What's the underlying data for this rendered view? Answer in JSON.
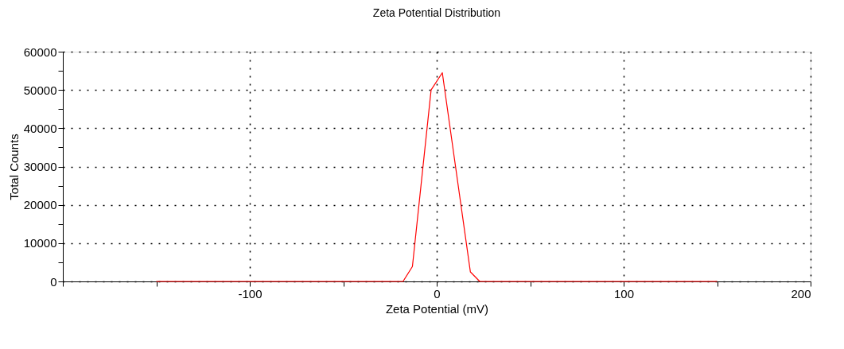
{
  "chart_data": {
    "type": "line",
    "title": "Zeta Potential Distribution",
    "xlabel": "Zeta Potential (mV)",
    "ylabel": "Total Counts",
    "x": [
      -150,
      -18,
      -13,
      -3,
      3,
      18,
      23,
      150
    ],
    "series": [
      {
        "color": "#ff0000",
        "values": [
          0,
          0,
          3900,
          50000,
          54500,
          2500,
          0,
          0
        ]
      }
    ],
    "xlim": [
      -200,
      200
    ],
    "xticks": [
      {
        "value": -200,
        "label": null
      },
      {
        "value": -150,
        "label": null
      },
      -100,
      {
        "value": -50,
        "label": null
      },
      0,
      {
        "value": 50,
        "label": null
      },
      100,
      {
        "value": 150,
        "label": null
      },
      200
    ],
    "ylim": [
      0,
      60000
    ],
    "yticks": [
      0,
      {
        "value": 5000,
        "label": null
      },
      10000,
      {
        "value": 15000,
        "label": null
      },
      20000,
      {
        "value": 25000,
        "label": null
      },
      30000,
      {
        "value": 35000,
        "label": null
      },
      40000,
      {
        "value": 45000,
        "label": null
      },
      50000,
      {
        "value": 55000,
        "label": null
      },
      60000
    ],
    "grid": true,
    "marker": "none",
    "line_style": "solid"
  }
}
